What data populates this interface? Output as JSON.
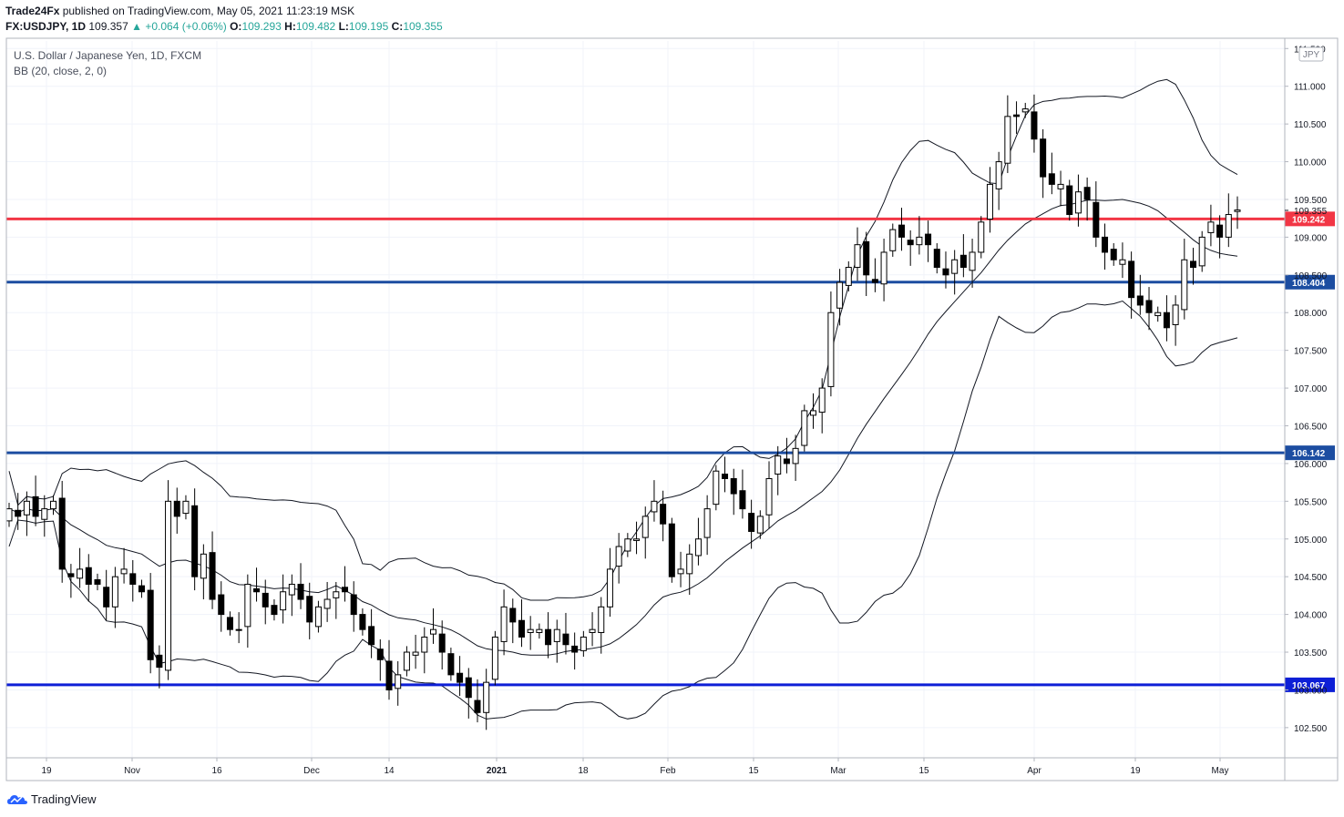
{
  "header": {
    "published_by": "Trade24Fx",
    "published_text": " published on TradingView.com, May 05, 2021 11:23:19 MSK",
    "symbol_interval": "FX:USDJPY, 1D",
    "last_price": "109.357",
    "change": "+0.064 (+0.06%)",
    "open_label": "O:",
    "open": "109.293",
    "high_label": "H:",
    "high": "109.482",
    "low_label": "L:",
    "low": "109.195",
    "close_label": "C:",
    "close": "109.355"
  },
  "colors": {
    "up_arrow": "#26a69a",
    "red_line": "#f23645",
    "blue_line": "#1c4da1",
    "blue_line_bright": "#0d1fd6"
  },
  "chart_data": {
    "type": "candlestick",
    "title": "U.S. Dollar / Japanese Yen, 1D, FXCM",
    "indicator": "BB (20, close, 2, 0)",
    "currency_badge": "JPY",
    "x_tick_labels": [
      "19",
      "Nov",
      "16",
      "Dec",
      "14",
      "2021",
      "18",
      "Feb",
      "15",
      "Mar",
      "15",
      "Apr",
      "19",
      "May"
    ],
    "y_tick_labels": [
      "102.500",
      "103.000",
      "103.500",
      "104.000",
      "104.500",
      "105.000",
      "105.500",
      "106.000",
      "106.500",
      "107.000",
      "107.500",
      "108.000",
      "108.500",
      "109.000",
      "109.500",
      "110.000",
      "110.500",
      "111.000",
      "111.500"
    ],
    "ylim": [
      102.1,
      111.6
    ],
    "horizontal_levels": [
      {
        "value": 109.242,
        "label": "109.242",
        "color": "red"
      },
      {
        "value": 108.404,
        "label": "108.404",
        "color": "blue"
      },
      {
        "value": 106.142,
        "label": "106.142",
        "color": "blue"
      },
      {
        "value": 103.067,
        "label": "103.067",
        "color": "blue"
      }
    ],
    "last_price_label": "109.355",
    "closes": [
      105.4,
      105.3,
      105.5,
      105.3,
      105.4,
      105.5,
      104.6,
      104.5,
      104.6,
      104.4,
      104.4,
      104.1,
      104.5,
      104.6,
      104.4,
      104.3,
      103.4,
      103.3,
      105.5,
      105.3,
      105.5,
      104.5,
      104.8,
      104.2,
      104.0,
      103.8,
      103.8,
      104.4,
      104.3,
      104.1,
      104.0,
      104.3,
      104.4,
      104.2,
      103.9,
      104.1,
      104.2,
      104.3,
      104.3,
      104.0,
      103.8,
      103.6,
      103.4,
      103.0,
      103.2,
      103.5,
      103.5,
      103.7,
      103.8,
      103.5,
      103.2,
      103.1,
      102.9,
      102.7,
      103.1,
      103.7,
      104.1,
      103.9,
      103.7,
      103.8,
      103.8,
      103.6,
      103.8,
      103.6,
      103.5,
      103.7,
      103.8,
      104.1,
      104.6,
      104.9,
      105.0,
      105.0,
      105.3,
      105.5,
      105.2,
      104.5,
      104.6,
      104.8,
      105.0,
      105.4,
      105.9,
      105.8,
      105.6,
      105.4,
      105.1,
      105.3,
      105.8,
      106.1,
      106.0,
      106.2,
      106.7,
      106.7,
      107.0,
      108.0,
      108.4,
      108.6,
      108.9,
      108.5,
      108.4,
      108.8,
      109.1,
      109.0,
      108.9,
      109.0,
      108.9,
      108.6,
      108.5,
      108.7,
      108.6,
      108.8,
      109.2,
      109.7,
      110.0,
      110.6,
      110.6,
      110.7,
      110.3,
      109.8,
      109.7,
      109.7,
      109.3,
      109.6,
      109.5,
      109.0,
      108.8,
      108.7,
      108.7,
      108.2,
      108.1,
      108.0,
      108.0,
      107.8,
      108.1,
      108.7,
      108.6,
      109.0,
      109.2,
      109.0,
      109.3,
      109.36
    ]
  },
  "footer": {
    "brand": "TradingView"
  }
}
